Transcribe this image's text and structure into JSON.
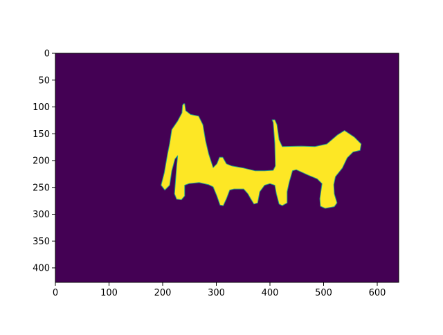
{
  "chart_data": {
    "type": "heatmap",
    "title": "",
    "xlabel": "",
    "ylabel": "",
    "image_size": {
      "width": 640,
      "height": 427
    },
    "xlim": [
      0,
      640
    ],
    "ylim": [
      427,
      0
    ],
    "y_inverted": true,
    "x_ticks": [
      0,
      100,
      200,
      300,
      400,
      500,
      600
    ],
    "y_ticks": [
      0,
      50,
      100,
      150,
      200,
      250,
      300,
      350,
      400
    ],
    "grid": false,
    "colormap": "viridis",
    "colors": {
      "background": "#440154",
      "foreground": "#fde725",
      "edge": "#21a38a"
    },
    "values": "binary mask (0 background, 1 foreground)",
    "foreground_outline": [
      [
        239,
        94
      ],
      [
        241,
        94
      ],
      [
        243,
        107
      ],
      [
        252,
        114
      ],
      [
        267,
        117
      ],
      [
        275,
        133
      ],
      [
        280,
        163
      ],
      [
        286,
        188
      ],
      [
        294,
        213
      ],
      [
        301,
        206
      ],
      [
        306,
        194
      ],
      [
        312,
        194
      ],
      [
        319,
        206
      ],
      [
        329,
        210
      ],
      [
        351,
        214
      ],
      [
        372,
        219
      ],
      [
        390,
        219
      ],
      [
        406,
        218
      ],
      [
        410,
        210
      ],
      [
        409,
        168
      ],
      [
        406,
        129
      ],
      [
        404,
        124
      ],
      [
        409,
        124
      ],
      [
        413,
        133
      ],
      [
        417,
        161
      ],
      [
        423,
        174
      ],
      [
        458,
        173
      ],
      [
        484,
        174
      ],
      [
        506,
        169
      ],
      [
        526,
        152
      ],
      [
        539,
        144
      ],
      [
        557,
        156
      ],
      [
        570,
        169
      ],
      [
        568,
        181
      ],
      [
        555,
        184
      ],
      [
        544,
        195
      ],
      [
        535,
        214
      ],
      [
        522,
        230
      ],
      [
        519,
        245
      ],
      [
        520,
        262
      ],
      [
        525,
        279
      ],
      [
        520,
        286
      ],
      [
        503,
        289
      ],
      [
        494,
        285
      ],
      [
        493,
        271
      ],
      [
        497,
        243
      ],
      [
        488,
        234
      ],
      [
        471,
        227
      ],
      [
        449,
        217
      ],
      [
        442,
        219
      ],
      [
        436,
        240
      ],
      [
        432,
        258
      ],
      [
        432,
        279
      ],
      [
        423,
        284
      ],
      [
        417,
        281
      ],
      [
        412,
        262
      ],
      [
        409,
        246
      ],
      [
        400,
        243
      ],
      [
        390,
        246
      ],
      [
        381,
        258
      ],
      [
        377,
        279
      ],
      [
        370,
        281
      ],
      [
        364,
        271
      ],
      [
        359,
        262
      ],
      [
        351,
        253
      ],
      [
        333,
        253
      ],
      [
        325,
        255
      ],
      [
        319,
        271
      ],
      [
        313,
        284
      ],
      [
        307,
        283
      ],
      [
        301,
        266
      ],
      [
        294,
        249
      ],
      [
        286,
        245
      ],
      [
        268,
        241
      ],
      [
        249,
        243
      ],
      [
        241,
        246
      ],
      [
        241,
        266
      ],
      [
        235,
        273
      ],
      [
        226,
        272
      ],
      [
        222,
        262
      ],
      [
        226,
        210
      ],
      [
        228,
        191
      ],
      [
        223,
        197
      ],
      [
        217,
        219
      ],
      [
        213,
        246
      ],
      [
        204,
        255
      ],
      [
        197,
        246
      ],
      [
        203,
        223
      ],
      [
        209,
        188
      ],
      [
        213,
        168
      ],
      [
        217,
        142
      ],
      [
        228,
        126
      ],
      [
        236,
        111
      ],
      [
        237,
        97
      ]
    ]
  }
}
